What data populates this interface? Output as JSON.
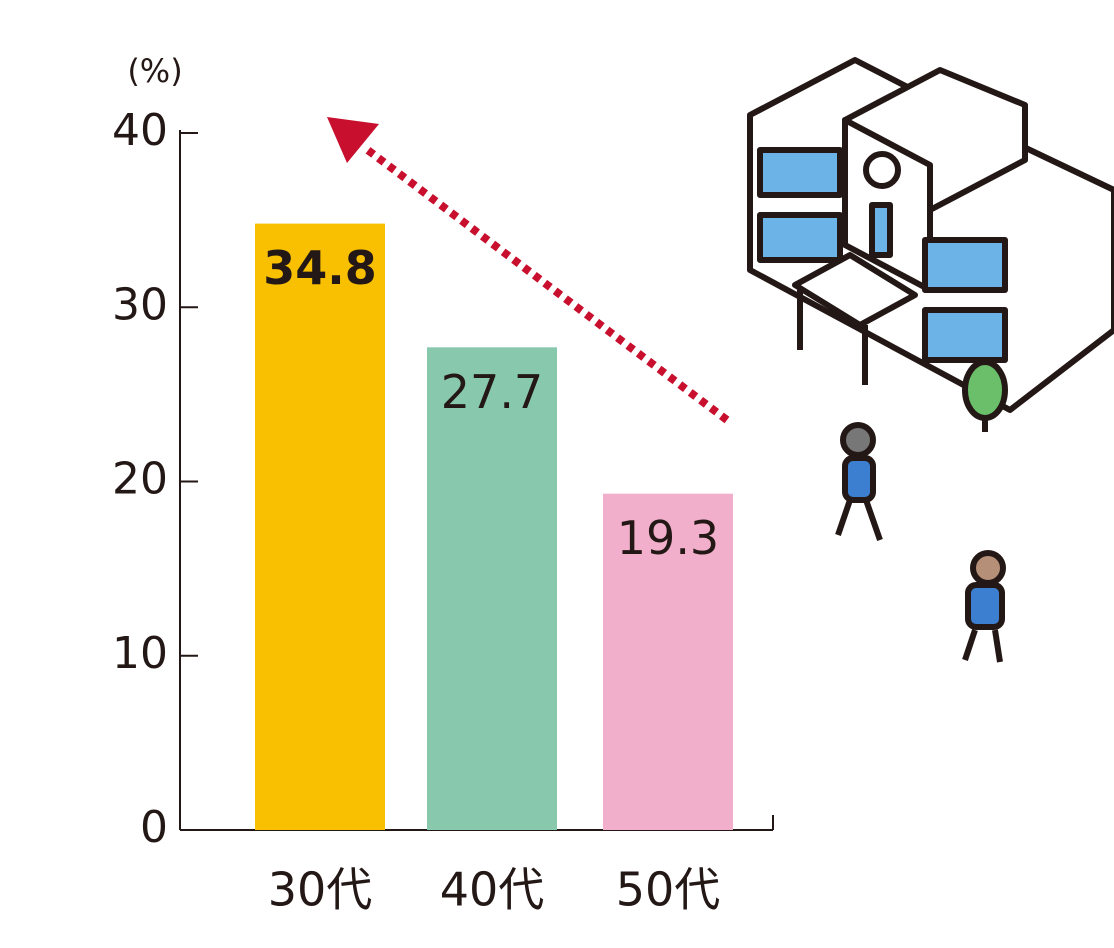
{
  "chart_data": {
    "type": "bar",
    "y_unit": "(%)",
    "categories": [
      "30代",
      "40代",
      "50代"
    ],
    "values": [
      34.8,
      27.7,
      19.3
    ],
    "colors": [
      "#f8c000",
      "#88c9ae",
      "#f2afcc"
    ],
    "ylim": [
      0,
      40
    ],
    "yticks": [
      0,
      10,
      20,
      30,
      40
    ]
  }
}
